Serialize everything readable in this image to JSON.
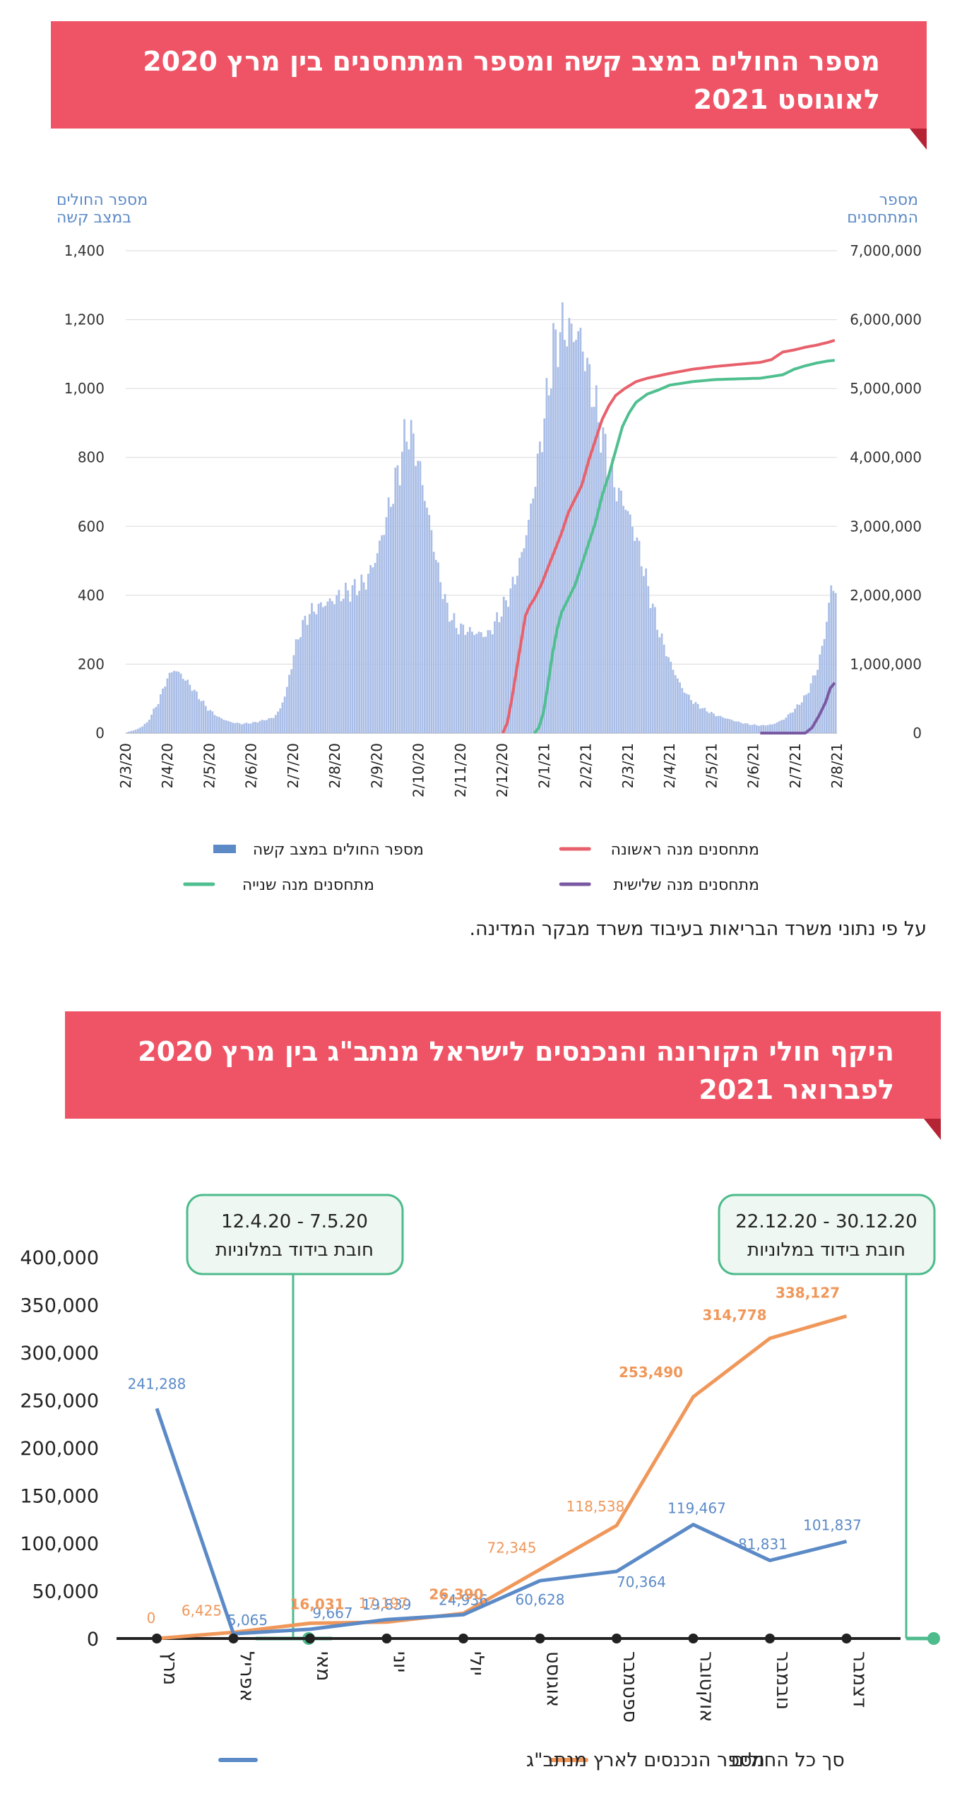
{
  "banner1": {
    "title": "מספר החולים במצב קשה ומספר המתחסנים בין מרץ 2020 לאוגוסט 2021"
  },
  "chart1_note": "על פי נתוני משרד הבריאות בעיבוד משרד מבקר המדינה.",
  "banner2": {
    "title": "היקף חולי הקורונה והנכנסים לישראל מנתב\"ג בין מרץ 2020 לפברואר 2021"
  },
  "chart_data": [
    {
      "type": "bar",
      "left_axis_title": "מספר החולים במצב קשה",
      "right_axis_title": "מספר המתחסנים",
      "left_ylim": [
        0,
        1400
      ],
      "left_yticks": [
        "1,400",
        "1,200",
        "1,000",
        "800",
        "600",
        "400",
        "200",
        "0"
      ],
      "right_ylim": [
        0,
        7000000
      ],
      "right_yticks": [
        "7,000,000",
        "6,000,000",
        "5,000,000",
        "4,000,000",
        "3,000,000",
        "2,000,000",
        "1,000,000",
        "0"
      ],
      "x_tick_labels": [
        "2/3/20",
        "2/4/20",
        "2/5/20",
        "2/6/20",
        "2/7/20",
        "2/8/20",
        "2/9/20",
        "2/10/20",
        "2/11/20",
        "2/12/20",
        "2/1/21",
        "2/2/21",
        "2/3/21",
        "2/4/21",
        "2/5/21",
        "2/6/21",
        "2/7/21",
        "2/8/21"
      ],
      "grid": true,
      "legend_position": "bottom",
      "series": [
        {
          "name": "מספר החולים במצב קשה",
          "kind": "bar",
          "axis": "left",
          "color": "#a9bde6",
          "points": [
            [
              0,
              2
            ],
            [
              5,
              12
            ],
            [
              9,
              30
            ],
            [
              14,
              90
            ],
            [
              18,
              160
            ],
            [
              21,
              185
            ],
            [
              24,
              170
            ],
            [
              28,
              140
            ],
            [
              32,
              105
            ],
            [
              36,
              70
            ],
            [
              41,
              45
            ],
            [
              46,
              32
            ],
            [
              51,
              27
            ],
            [
              56,
              30
            ],
            [
              61,
              38
            ],
            [
              65,
              45
            ],
            [
              68,
              70
            ],
            [
              71,
              130
            ],
            [
              74,
              230
            ],
            [
              77,
              300
            ],
            [
              81,
              350
            ],
            [
              86,
              370
            ],
            [
              91,
              385
            ],
            [
              96,
              405
            ],
            [
              101,
              420
            ],
            [
              106,
              440
            ],
            [
              111,
              520
            ],
            [
              116,
              650
            ],
            [
              121,
              780
            ],
            [
              124,
              880
            ],
            [
              127,
              850
            ],
            [
              130,
              760
            ],
            [
              134,
              620
            ],
            [
              138,
              470
            ],
            [
              142,
              360
            ],
            [
              146,
              310
            ],
            [
              150,
              300
            ],
            [
              155,
              290
            ],
            [
              160,
              285
            ],
            [
              165,
              340
            ],
            [
              170,
              410
            ],
            [
              174,
              490
            ],
            [
              178,
              610
            ],
            [
              182,
              780
            ],
            [
              186,
              960
            ],
            [
              189,
              1120
            ],
            [
              193,
              1175
            ],
            [
              197,
              1165
            ],
            [
              201,
              1150
            ],
            [
              206,
              1000
            ],
            [
              211,
              850
            ],
            [
              216,
              720
            ],
            [
              221,
              660
            ],
            [
              226,
              560
            ],
            [
              231,
              420
            ],
            [
              236,
              290
            ],
            [
              241,
              200
            ],
            [
              246,
              130
            ],
            [
              251,
              90
            ],
            [
              256,
              68
            ],
            [
              261,
              52
            ],
            [
              266,
              42
            ],
            [
              271,
              32
            ],
            [
              276,
              25
            ],
            [
              281,
              22
            ],
            [
              286,
              25
            ],
            [
              291,
              40
            ],
            [
              296,
              70
            ],
            [
              301,
              110
            ],
            [
              306,
              190
            ],
            [
              309,
              280
            ],
            [
              312,
              420
            ]
          ]
        },
        {
          "name": "מתחסנים מנה ראשונה",
          "kind": "line",
          "axis": "right",
          "color": "#e8606b",
          "points": [
            [
              167,
              0
            ],
            [
              169,
              150000
            ],
            [
              171,
              500000
            ],
            [
              173,
              900000
            ],
            [
              175,
              1300000
            ],
            [
              177,
              1700000
            ],
            [
              179,
              1850000
            ],
            [
              181,
              1950000
            ],
            [
              184,
              2150000
            ],
            [
              187,
              2400000
            ],
            [
              190,
              2650000
            ],
            [
              193,
              2900000
            ],
            [
              196,
              3200000
            ],
            [
              199,
              3400000
            ],
            [
              202,
              3600000
            ],
            [
              205,
              3950000
            ],
            [
              208,
              4250000
            ],
            [
              211,
              4550000
            ],
            [
              214,
              4750000
            ],
            [
              217,
              4900000
            ],
            [
              221,
              5000000
            ],
            [
              226,
              5100000
            ],
            [
              231,
              5150000
            ],
            [
              241,
              5220000
            ],
            [
              251,
              5280000
            ],
            [
              261,
              5320000
            ],
            [
              271,
              5350000
            ],
            [
              281,
              5380000
            ],
            [
              286,
              5420000
            ],
            [
              291,
              5530000
            ],
            [
              296,
              5560000
            ],
            [
              301,
              5600000
            ],
            [
              306,
              5630000
            ],
            [
              311,
              5670000
            ],
            [
              314,
              5700000
            ]
          ]
        },
        {
          "name": "מתחסנים מנה שנייה",
          "kind": "line",
          "axis": "right",
          "color": "#4fbf90",
          "points": [
            [
              181,
              0
            ],
            [
              183,
              80000
            ],
            [
              185,
              300000
            ],
            [
              187,
              700000
            ],
            [
              189,
              1150000
            ],
            [
              191,
              1500000
            ],
            [
              193,
              1750000
            ],
            [
              196,
              1950000
            ],
            [
              199,
              2150000
            ],
            [
              202,
              2450000
            ],
            [
              205,
              2750000
            ],
            [
              208,
              3050000
            ],
            [
              211,
              3450000
            ],
            [
              214,
              3750000
            ],
            [
              217,
              4100000
            ],
            [
              220,
              4450000
            ],
            [
              223,
              4650000
            ],
            [
              226,
              4800000
            ],
            [
              231,
              4920000
            ],
            [
              236,
              4980000
            ],
            [
              241,
              5050000
            ],
            [
              251,
              5100000
            ],
            [
              261,
              5130000
            ],
            [
              271,
              5140000
            ],
            [
              281,
              5150000
            ],
            [
              291,
              5200000
            ],
            [
              296,
              5280000
            ],
            [
              301,
              5330000
            ],
            [
              306,
              5370000
            ],
            [
              311,
              5400000
            ],
            [
              314,
              5410000
            ]
          ]
        },
        {
          "name": "מתחסנים מנה שלישית",
          "kind": "line",
          "axis": "right",
          "color": "#7a59a3",
          "points": [
            [
              281,
              0
            ],
            [
              301,
              0
            ],
            [
              304,
              80000
            ],
            [
              307,
              250000
            ],
            [
              310,
              450000
            ],
            [
              312,
              650000
            ],
            [
              314,
              730000
            ]
          ]
        }
      ]
    },
    {
      "type": "line",
      "categories": [
        "מרץ",
        "אפריל",
        "מאי",
        "יוני",
        "יולי",
        "אוגוסט",
        "ספטמבר",
        "אוקטובר",
        "נובמבר",
        "דצמבר"
      ],
      "ylim": [
        0,
        400000
      ],
      "yticks": [
        "400,000",
        "350,000",
        "300,000",
        "250,000",
        "200,000",
        "150,000",
        "100,000",
        "50,000",
        "0"
      ],
      "legend_position": "bottom",
      "series": [
        {
          "name": "מספר הנכנסים לארץ מנתב\"ג",
          "color": "#5b8ac7",
          "values": [
            241288,
            5065,
            9667,
            19839,
            24936,
            60628,
            70364,
            119467,
            81831,
            101837
          ],
          "labels": [
            "241,288",
            "5,065",
            "9,667",
            "19,839",
            "24,936",
            "60,628",
            "70,364",
            "119,467",
            "81,831",
            "101,837"
          ]
        },
        {
          "name": "סך כל החולים",
          "color": "#f0975a",
          "values": [
            0,
            6425,
            16031,
            17197,
            26390,
            72345,
            118538,
            253490,
            314778,
            338127
          ],
          "labels": [
            "0",
            "6,425",
            "16,031",
            "17,197",
            "26,390",
            "72,345",
            "118,538",
            "253,490",
            "314,778",
            "338,127"
          ]
        }
      ],
      "annotations": [
        {
          "date_range": "12.4.20 - 7.5.20",
          "text": "חובת בידוד במלוניות"
        },
        {
          "date_range": "22.12.20 - 30.12.20",
          "text": "חובת בידוד במלוניות"
        }
      ]
    }
  ]
}
